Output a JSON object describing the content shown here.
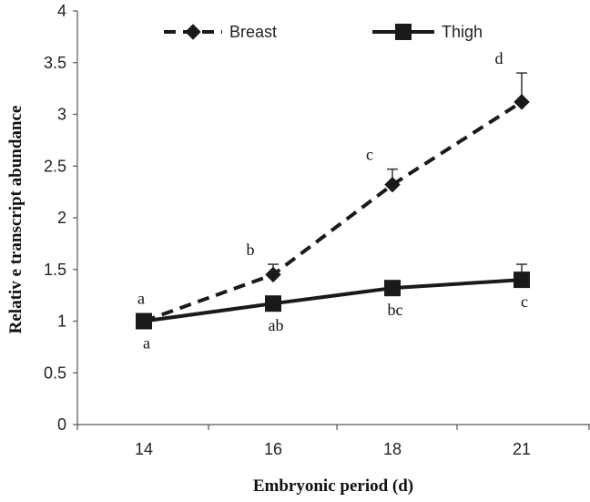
{
  "chart_data": {
    "type": "line",
    "title": "",
    "xlabel": "Embryonic period (d)",
    "ylabel": "Relativ e transcript abundance",
    "categories": [
      "14",
      "16",
      "18",
      "21"
    ],
    "ylim": [
      0,
      4
    ],
    "yticks": [
      0,
      0.5,
      1,
      1.5,
      2,
      2.5,
      3,
      3.5,
      4
    ],
    "ytick_labels": [
      "0",
      "0.5",
      "1",
      "1.5",
      "2",
      "2.5",
      "3",
      "3.5",
      "4"
    ],
    "grid": false,
    "legend_position": "top",
    "series": [
      {
        "name": "Breast",
        "values": [
          1.0,
          1.45,
          2.32,
          3.12
        ],
        "error": [
          0.0,
          0.1,
          0.15,
          0.28
        ],
        "labels": [
          "a",
          "b",
          "c",
          "d"
        ],
        "label_position": "above",
        "line_style": "dashed",
        "marker": "diamond",
        "color": "#1a1a1a"
      },
      {
        "name": "Thigh",
        "values": [
          1.0,
          1.17,
          1.32,
          1.4
        ],
        "error": [
          0.0,
          0.0,
          0.0,
          0.15
        ],
        "labels": [
          "a",
          "ab",
          "bc",
          "c"
        ],
        "label_position": "below",
        "line_style": "solid",
        "marker": "square",
        "color": "#1a1a1a"
      }
    ]
  }
}
